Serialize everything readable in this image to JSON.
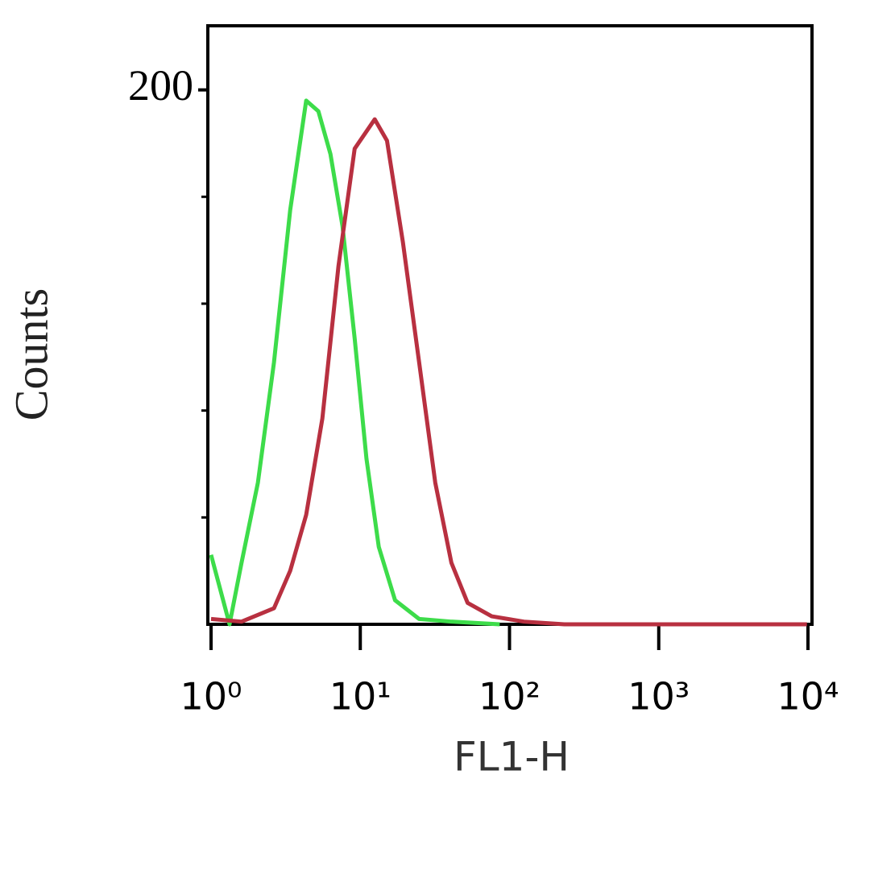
{
  "chart_data": {
    "type": "line",
    "xlabel": "FL1-H",
    "ylabel": "Counts",
    "xscale": "log",
    "xlim": [
      1,
      10000
    ],
    "xticks": [
      {
        "value": 1,
        "label": "10⁰"
      },
      {
        "value": 10,
        "label": "10¹"
      },
      {
        "value": 100,
        "label": "10²"
      },
      {
        "value": 1000,
        "label": "10³"
      },
      {
        "value": 10000,
        "label": "10⁴"
      }
    ],
    "ylim": [
      0,
      224
    ],
    "yticks": [
      200
    ],
    "yminorticks": [
      40,
      80,
      120,
      160
    ],
    "series": [
      {
        "color": "#3ddc4a",
        "x": [
          1,
          1.33,
          1.6,
          2.06,
          2.64,
          3.39,
          4.34,
          5.24,
          6.31,
          7.6,
          9.17,
          11.0,
          13.3,
          17.1,
          24.8,
          40.8,
          86
        ],
        "values": [
          26,
          0,
          23,
          53,
          98,
          155,
          196,
          192,
          176,
          149,
          107,
          62,
          29,
          9,
          2,
          1,
          0
        ]
      },
      {
        "color": "#b83040",
        "x": [
          1,
          1.6,
          2.64,
          3.39,
          4.34,
          5.57,
          7.14,
          9.17,
          12.5,
          15.1,
          19.3,
          24.8,
          31.8,
          40.8,
          52.4,
          76.0,
          125,
          233,
          9840
        ],
        "values": [
          2,
          1,
          6,
          20,
          41,
          77,
          134,
          178,
          189,
          181,
          143,
          98,
          53,
          23,
          8,
          3,
          1,
          0,
          0
        ]
      }
    ]
  }
}
